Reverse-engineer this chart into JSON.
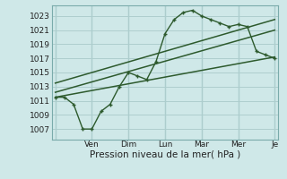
{
  "bg_color": "#cfe8e8",
  "grid_color": "#aecece",
  "line_color": "#2d5a2d",
  "x_tick_positions": [
    0,
    2,
    4,
    6,
    8,
    10,
    12
  ],
  "x_labels": [
    "",
    "Ven",
    "Dim",
    "Lun",
    "Mar",
    "Mer",
    "Je"
  ],
  "ylim": [
    1005.5,
    1024.5
  ],
  "yticks": [
    1007,
    1009,
    1011,
    1013,
    1015,
    1017,
    1019,
    1021,
    1023
  ],
  "xlabel": "Pression niveau de la mer( hPa )",
  "xlabel_fontsize": 7.5,
  "tick_fontsize": 6.5,
  "main_line_x": [
    0,
    0.5,
    1.0,
    1.5,
    2.0,
    2.5,
    3.0,
    3.5,
    4.0,
    4.5,
    5.0,
    5.5,
    6.0,
    6.5,
    7.0,
    7.5,
    8.0,
    8.5,
    9.0,
    9.5,
    10.0,
    10.5,
    11.0,
    11.5,
    12.0
  ],
  "main_line_y": [
    1011.5,
    1011.5,
    1010.5,
    1007.0,
    1007.0,
    1009.5,
    1010.5,
    1013.0,
    1015.0,
    1014.5,
    1014.0,
    1016.5,
    1020.5,
    1022.5,
    1023.5,
    1023.8,
    1023.0,
    1022.5,
    1022.0,
    1021.5,
    1021.8,
    1021.5,
    1018.0,
    1017.5,
    1017.0
  ],
  "upper_line_x": [
    0,
    12
  ],
  "upper_line_y": [
    1013.5,
    1022.5
  ],
  "lower_line_x": [
    0,
    12
  ],
  "lower_line_y": [
    1011.5,
    1017.2
  ],
  "mid_line_x": [
    0,
    12
  ],
  "mid_line_y": [
    1012.2,
    1021.0
  ]
}
